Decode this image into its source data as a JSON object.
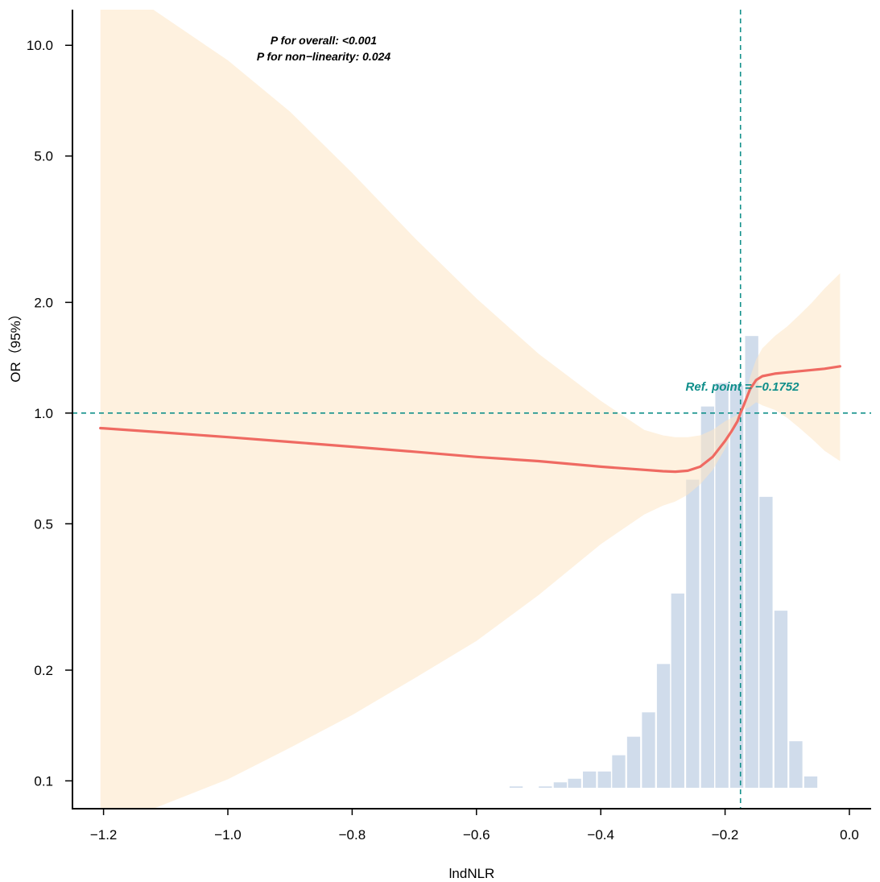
{
  "chart_data": {
    "type": "line",
    "xlabel": "lndNLR",
    "ylabel": "OR（95%）",
    "y_scale": "log",
    "xlim": [
      -1.25,
      0.035
    ],
    "ylim": [
      0.084,
      12.5
    ],
    "x_ticks": [
      -1.2,
      -1.0,
      -0.8,
      -0.6,
      -0.4,
      -0.2,
      0.0
    ],
    "x_tick_labels": [
      "−1.2",
      "−1.0",
      "−0.8",
      "−0.6",
      "−0.4",
      "−0.2",
      "0.0"
    ],
    "y_ticks": [
      0.1,
      0.2,
      0.5,
      1.0,
      2.0,
      5.0,
      10.0
    ],
    "y_tick_labels": [
      "0.1",
      "0.2",
      "0.5",
      "1.0",
      "2.0",
      "5.0",
      "10.0"
    ],
    "annotations": [
      "P for overall: <0.001",
      "P for non−linearity: 0.024"
    ],
    "ref_point": {
      "x": -0.1752,
      "y": 1.0,
      "label": "Ref. point = −0.1752"
    },
    "series": [
      {
        "name": "OR",
        "x": [
          -1.205,
          -1.1,
          -1.0,
          -0.9,
          -0.8,
          -0.7,
          -0.6,
          -0.5,
          -0.4,
          -0.35,
          -0.3,
          -0.28,
          -0.26,
          -0.24,
          -0.22,
          -0.2,
          -0.19,
          -0.18,
          -0.1752,
          -0.17,
          -0.16,
          -0.15,
          -0.14,
          -0.12,
          -0.1,
          -0.08,
          -0.06,
          -0.04,
          -0.015
        ],
        "y": [
          0.91,
          0.885,
          0.86,
          0.835,
          0.81,
          0.785,
          0.76,
          0.74,
          0.715,
          0.705,
          0.695,
          0.693,
          0.697,
          0.715,
          0.76,
          0.84,
          0.89,
          0.95,
          1.0,
          1.05,
          1.16,
          1.23,
          1.26,
          1.28,
          1.29,
          1.3,
          1.31,
          1.32,
          1.34
        ]
      }
    ],
    "ci_band": {
      "x": [
        -1.205,
        -1.12,
        -1.0,
        -0.9,
        -0.8,
        -0.7,
        -0.6,
        -0.5,
        -0.4,
        -0.33,
        -0.3,
        -0.28,
        -0.26,
        -0.24,
        -0.22,
        -0.2,
        -0.19,
        -0.18,
        -0.1752,
        -0.17,
        -0.16,
        -0.15,
        -0.14,
        -0.12,
        -0.1,
        -0.08,
        -0.06,
        -0.04,
        -0.015
      ],
      "lower": [
        0.083,
        0.084,
        0.101,
        0.123,
        0.151,
        0.19,
        0.24,
        0.32,
        0.44,
        0.53,
        0.56,
        0.575,
        0.6,
        0.64,
        0.7,
        0.8,
        0.87,
        0.94,
        1.0,
        1.02,
        1.04,
        1.07,
        1.05,
        1.02,
        0.97,
        0.91,
        0.85,
        0.79,
        0.74
      ],
      "upper": [
        12.5,
        12.5,
        9.1,
        6.6,
        4.5,
        3.0,
        2.05,
        1.45,
        1.08,
        0.9,
        0.87,
        0.86,
        0.86,
        0.87,
        0.9,
        0.95,
        0.97,
        0.99,
        1.0,
        1.06,
        1.25,
        1.4,
        1.5,
        1.62,
        1.72,
        1.85,
        2.0,
        2.18,
        2.4
      ]
    },
    "histogram": {
      "bin_width": 0.0237,
      "bins_start": [
        -0.548,
        -0.501,
        -0.477,
        -0.454,
        -0.43,
        -0.406,
        -0.383,
        -0.359,
        -0.335,
        -0.311,
        -0.288,
        -0.264,
        -0.24,
        -0.217,
        -0.193,
        -0.169,
        -0.146,
        -0.122,
        -0.098,
        -0.074
      ],
      "relative_heights": [
        0.003,
        0.003,
        0.012,
        0.02,
        0.036,
        0.036,
        0.072,
        0.113,
        0.167,
        0.274,
        0.43,
        0.682,
        0.844,
        0.896,
        0.891,
        1.0,
        0.644,
        0.392,
        0.103,
        0.025
      ]
    }
  }
}
